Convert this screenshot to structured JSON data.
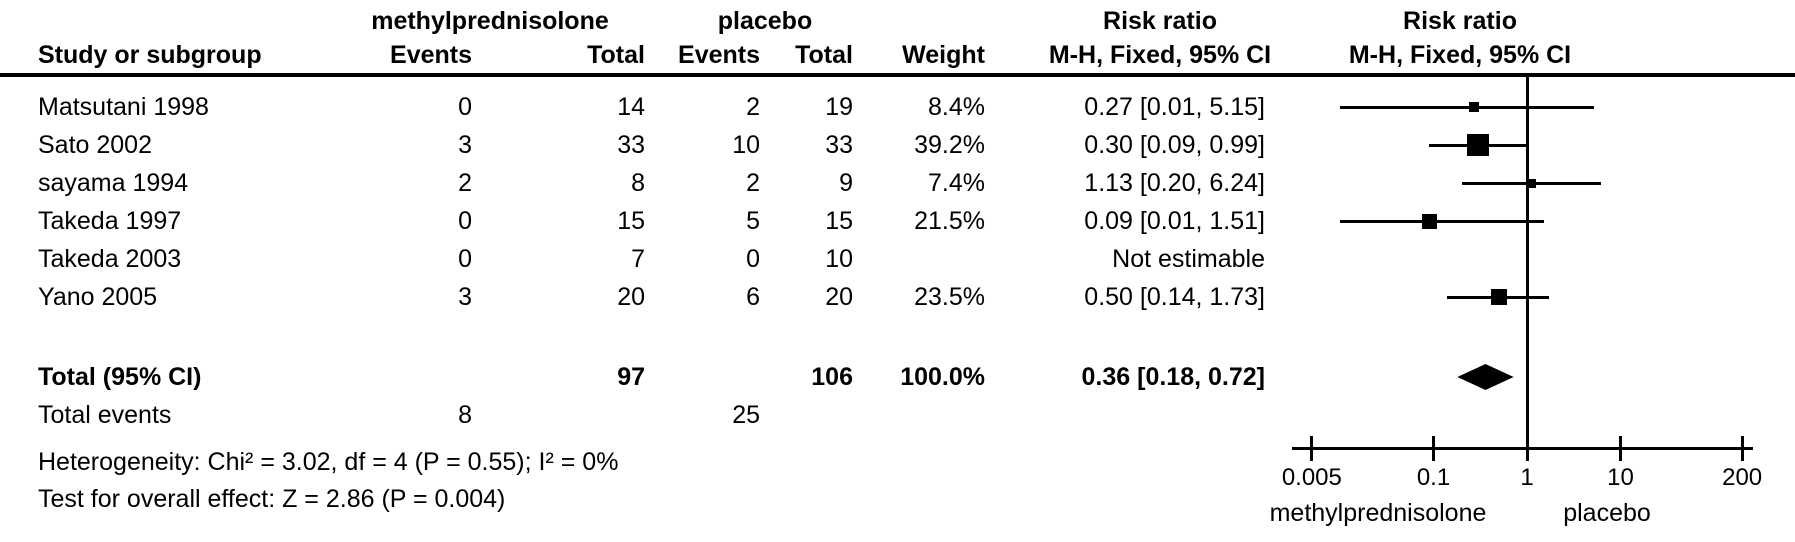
{
  "header": {
    "study_col": "Study or subgroup",
    "treatment_group": "methylprednisolone",
    "control_group": "placebo",
    "events": "Events",
    "total": "Total",
    "weight": "Weight",
    "risk_ratio": "Risk ratio",
    "method": "M-H, Fixed, 95% CI"
  },
  "chart_data": {
    "type": "forest",
    "effect_measure": "Risk ratio",
    "method": "M-H, Fixed, 95% CI",
    "x_scale": "log",
    "x_ticks": [
      0.005,
      0.1,
      1,
      10,
      200
    ],
    "x_tick_labels": [
      "0.005",
      "0.1",
      "1",
      "10",
      "200"
    ],
    "x_range": [
      0.005,
      200
    ],
    "null_line": 1,
    "favors_left_label": "methylprednisolone",
    "favors_right_label": "placebo",
    "marker_color": "#000000",
    "background_color": "#ffffff",
    "studies": [
      {
        "name": "Matsutani 1998",
        "treatment_events": "0",
        "treatment_total": "14",
        "control_events": "2",
        "control_total": "19",
        "weight": "8.4%",
        "weight_pct": 8.4,
        "rr_text": "0.27 [0.01, 5.15]",
        "rr": 0.27,
        "ci_low": 0.01,
        "ci_high": 5.15,
        "estimable": true
      },
      {
        "name": "Sato 2002",
        "treatment_events": "3",
        "treatment_total": "33",
        "control_events": "10",
        "control_total": "33",
        "weight": "39.2%",
        "weight_pct": 39.2,
        "rr_text": "0.30 [0.09, 0.99]",
        "rr": 0.3,
        "ci_low": 0.09,
        "ci_high": 0.99,
        "estimable": true
      },
      {
        "name": "sayama 1994",
        "treatment_events": "2",
        "treatment_total": "8",
        "control_events": "2",
        "control_total": "9",
        "weight": "7.4%",
        "weight_pct": 7.4,
        "rr_text": "1.13 [0.20, 6.24]",
        "rr": 1.13,
        "ci_low": 0.2,
        "ci_high": 6.24,
        "estimable": true
      },
      {
        "name": "Takeda 1997",
        "treatment_events": "0",
        "treatment_total": "15",
        "control_events": "5",
        "control_total": "15",
        "weight": "21.5%",
        "weight_pct": 21.5,
        "rr_text": "0.09 [0.01, 1.51]",
        "rr": 0.09,
        "ci_low": 0.01,
        "ci_high": 1.51,
        "estimable": true
      },
      {
        "name": "Takeda 2003",
        "treatment_events": "0",
        "treatment_total": "7",
        "control_events": "0",
        "control_total": "10",
        "weight": "",
        "weight_pct": null,
        "rr_text": "Not estimable",
        "rr": null,
        "ci_low": null,
        "ci_high": null,
        "estimable": false
      },
      {
        "name": "Yano 2005",
        "treatment_events": "3",
        "treatment_total": "20",
        "control_events": "6",
        "control_total": "20",
        "weight": "23.5%",
        "weight_pct": 23.5,
        "rr_text": "0.50 [0.14, 1.73]",
        "rr": 0.5,
        "ci_low": 0.14,
        "ci_high": 1.73,
        "estimable": true
      }
    ],
    "total": {
      "label": "Total (95% CI)",
      "treatment_total": "97",
      "control_total": "106",
      "weight": "100.0%",
      "rr_text": "0.36 [0.18, 0.72]",
      "rr": 0.36,
      "ci_low": 0.18,
      "ci_high": 0.72
    },
    "total_events": {
      "label": "Total events",
      "treatment_events": "8",
      "control_events": "25"
    },
    "heterogeneity": "Heterogeneity: Chi² = 3.02, df = 4 (P = 0.55); I² = 0%",
    "overall_effect": "Test for overall effect: Z = 2.86 (P = 0.004)"
  }
}
